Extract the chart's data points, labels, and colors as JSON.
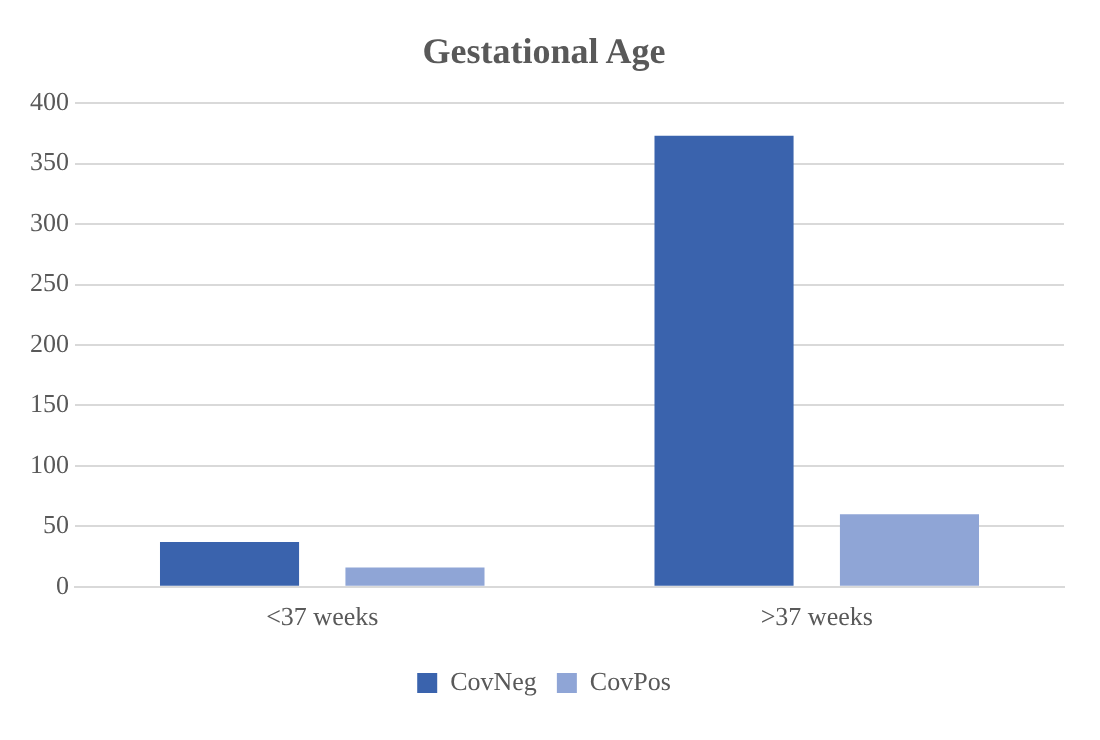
{
  "chart_data": {
    "type": "bar",
    "title": "Gestational Age",
    "categories": [
      "<37 weeks",
      ">37 weeks"
    ],
    "series": [
      {
        "name": "CovNeg",
        "color": "#3a63ad",
        "values": [
          37,
          373
        ]
      },
      {
        "name": "CovPos",
        "color": "#8fa5d6",
        "values": [
          16,
          60
        ]
      }
    ],
    "ylim": [
      0,
      400
    ],
    "yticks": [
      0,
      50,
      100,
      150,
      200,
      250,
      300,
      350,
      400
    ],
    "grid": "y",
    "legend": "bottom"
  }
}
